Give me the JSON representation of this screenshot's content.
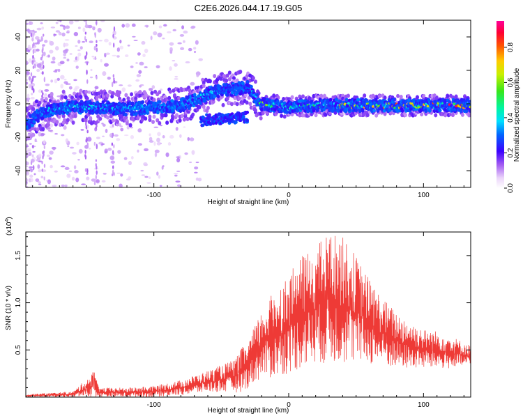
{
  "title": "C2E6.2026.044.17.19.G05",
  "colors": {
    "snr_line": "#ee3a36",
    "axis": "#000000",
    "background": "#ffffff"
  },
  "chart_data": [
    {
      "type": "heatmap",
      "xlabel": "Height of straight line (km)",
      "ylabel": "Frequency (Hz)",
      "xlim": [
        -195,
        135
      ],
      "ylim": [
        -50,
        50
      ],
      "x_ticks": [
        -100,
        0,
        100
      ],
      "x_tick_labels": [
        "-100",
        "0",
        "100"
      ],
      "y_ticks": [
        -40,
        -20,
        0,
        20,
        40
      ],
      "y_tick_labels": [
        "-40",
        "-20",
        "0",
        "20",
        "40"
      ],
      "colorbar": {
        "label": "Normalized spectral amplitude",
        "range": [
          0,
          0.95
        ],
        "ticks": [
          0.0,
          0.2,
          0.4,
          0.6,
          0.8
        ],
        "tick_labels": [
          "0.0",
          "0.2",
          "0.4",
          "0.6",
          "0.8"
        ],
        "colormap": "rainbow (white-violet-blue-cyan-green-yellow-red-magenta)"
      },
      "ridge": {
        "description": "main spectral trace frequency (Hz) vs height (km)",
        "x": [
          -195,
          -180,
          -160,
          -140,
          -120,
          -100,
          -80,
          -70,
          -60,
          -50,
          -40,
          -30,
          -25,
          -20,
          -10,
          0,
          20,
          40,
          60,
          80,
          100,
          120,
          135
        ],
        "y": [
          -12,
          -4,
          -2,
          -2,
          -3,
          -2,
          -1,
          2,
          6,
          8,
          9,
          10,
          4,
          0,
          -1,
          -2,
          -1,
          -1,
          -1,
          -1,
          -1,
          -1,
          -1
        ],
        "amplitude": [
          0.25,
          0.45,
          0.45,
          0.45,
          0.4,
          0.4,
          0.35,
          0.4,
          0.45,
          0.35,
          0.3,
          0.3,
          0.55,
          0.9,
          0.5,
          0.5,
          0.6,
          0.75,
          0.8,
          0.9,
          0.9,
          0.95,
          0.95
        ]
      },
      "secondary_branch": {
        "description": "lower branch between -65 and -30 km",
        "x": [
          -65,
          -55,
          -45,
          -35,
          -30
        ],
        "y": [
          -10,
          -9,
          -9,
          -8,
          -8
        ]
      }
    },
    {
      "type": "line",
      "xlabel": "Height of straight line (km)",
      "ylabel": "SNR (10 * v/v)",
      "y_scale_label": "(x10",
      "y_scale_exponent": "4",
      "y_scale_close": ")",
      "y_multiplier": 10000,
      "xlim": [
        -195,
        135
      ],
      "ylim": [
        0,
        1.75
      ],
      "x_ticks": [
        -100,
        0,
        100
      ],
      "x_tick_labels": [
        "-100",
        "0",
        "100"
      ],
      "y_ticks": [
        0.5,
        1.0,
        1.5
      ],
      "y_tick_labels": [
        "0.5",
        "1.0",
        "1.5"
      ],
      "envelope": {
        "description": "approximate upper envelope / baseline of noisy SNR trace (x10^4)",
        "x": [
          -195,
          -160,
          -145,
          -140,
          -120,
          -100,
          -80,
          -60,
          -40,
          -35,
          -30,
          -20,
          -10,
          0,
          10,
          20,
          30,
          40,
          50,
          60,
          70,
          80,
          90,
          100,
          110,
          120,
          135
        ],
        "upper": [
          0.03,
          0.06,
          0.26,
          0.1,
          0.1,
          0.12,
          0.18,
          0.28,
          0.4,
          0.52,
          0.6,
          0.92,
          1.15,
          1.3,
          1.5,
          1.6,
          1.75,
          1.7,
          1.5,
          1.25,
          1.05,
          0.9,
          0.8,
          0.72,
          0.7,
          0.65,
          0.55
        ],
        "lower": [
          0.0,
          0.0,
          0.0,
          0.0,
          0.0,
          0.0,
          0.02,
          0.05,
          0.05,
          0.05,
          0.1,
          0.2,
          0.2,
          0.25,
          0.3,
          0.35,
          0.35,
          0.35,
          0.35,
          0.35,
          0.32,
          0.3,
          0.3,
          0.3,
          0.3,
          0.3,
          0.32
        ]
      }
    }
  ]
}
